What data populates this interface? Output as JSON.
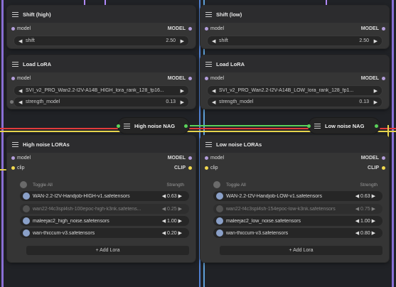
{
  "colors": {
    "wire_red": "#e23b3b",
    "wire_yellow": "#e8d44d",
    "wire_purple": "#b48bff",
    "wire_green": "#5bd25b",
    "dot_model": "#b39ddb",
    "dot_clip": "#f2d94e"
  },
  "left": {
    "shift": {
      "title": "Shift (high)",
      "in_label": "model",
      "out_label": "MODEL",
      "param": "shift",
      "value": "2.50"
    },
    "lora": {
      "title": "Load LoRA",
      "in_label": "model",
      "out_label": "MODEL",
      "file": "SVI_v2_PRO_Wan2.2-I2V-A14B_HIGH_lora_rank_128_fp16...",
      "param": "strength_model",
      "value": "0.13"
    },
    "nag": {
      "title": "High noise NAG"
    },
    "loras": {
      "title": "High noise LORAs",
      "in1": "model",
      "out1": "MODEL",
      "in2": "clip",
      "out2": "CLIP",
      "toggle_all": "Toggle All",
      "strength": "Strength",
      "items": [
        {
          "name": "WAN-2.2-I2V-Handjob-HIGH-v1.safetensors",
          "value": "0.63",
          "on": true
        },
        {
          "name": "wan22-f4c3spl4sh-100epoc-high-k3nk.safetens...",
          "value": "0.25",
          "on": false
        },
        {
          "name": "maleejac2_high_noise.safetensors",
          "value": "1.00",
          "on": true
        },
        {
          "name": "wan-thiccum-v3.safetensors",
          "value": "0.20",
          "on": true
        }
      ],
      "add": "+ Add Lora"
    }
  },
  "right": {
    "shift": {
      "title": "Shift (low)",
      "in_label": "model",
      "out_label": "MODEL",
      "param": "shift",
      "value": "2.50"
    },
    "lora": {
      "title": "Load LoRA",
      "in_label": "model",
      "out_label": "MODEL",
      "file": "SVI_v2_PRO_Wan2.2-I2V-A14B_LOW_lora_rank_128_fp1...",
      "param": "strength_model",
      "value": "0.13"
    },
    "nag": {
      "title": "Low noise NAG"
    },
    "loras": {
      "title": "Low noise LORAs",
      "in1": "model",
      "out1": "MODEL",
      "in2": "clip",
      "out2": "CLIP",
      "toggle_all": "Toggle All",
      "strength": "Strength",
      "items": [
        {
          "name": "WAN-2.2-I2V-Handjob-LOW-v1.safetensors",
          "value": "0.63",
          "on": true
        },
        {
          "name": "wan22-f4c3spl4sh-154epoc-low-k3nk.safetensors",
          "value": "0.75",
          "on": false
        },
        {
          "name": "maleejac2_low_noise.safetensors",
          "value": "1.00",
          "on": true
        },
        {
          "name": "wan-thiccum-v3.safetensors",
          "value": "0.80",
          "on": true
        }
      ],
      "add": "+ Add Lora"
    }
  }
}
